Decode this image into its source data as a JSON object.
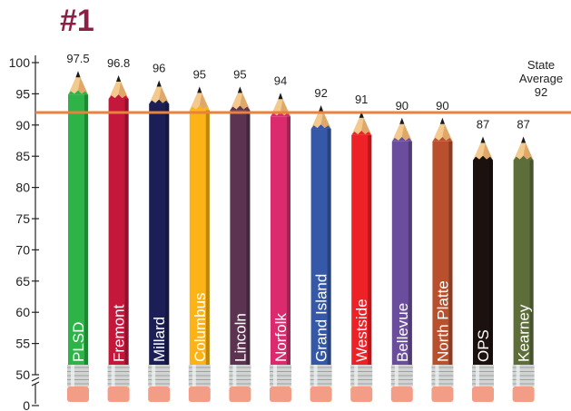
{
  "badge": "#1",
  "average_note": {
    "line1": "State",
    "line2": "Average",
    "value": "92"
  },
  "chart_data": {
    "type": "bar",
    "style": "pencils",
    "title": "",
    "xlabel": "",
    "ylabel": "",
    "ylim": [
      0,
      100
    ],
    "yticks": [
      0,
      50,
      55,
      60,
      65,
      70,
      75,
      80,
      85,
      90,
      95,
      100
    ],
    "axis_break": "between 0 and 50",
    "grid": false,
    "reference_line": {
      "value": 92,
      "color": "#e8823c"
    },
    "categories": [
      "PLSD",
      "Fremont",
      "Millard",
      "Columbus",
      "Lincoln",
      "Norfolk",
      "Grand Island",
      "Westside",
      "Bellevue",
      "North Platte",
      "OPS",
      "Kearney"
    ],
    "values": [
      97.5,
      96.8,
      96,
      95,
      95,
      94,
      92,
      91,
      90,
      90,
      87,
      87
    ],
    "value_labels": [
      "97.5",
      "96.8",
      "96",
      "95",
      "95",
      "94",
      "92",
      "91",
      "90",
      "90",
      "87",
      "87"
    ],
    "colors": [
      "#2db348",
      "#c3173c",
      "#1c1f55",
      "#fbb317",
      "#5c3451",
      "#dc2a6f",
      "#3658a8",
      "#ee2127",
      "#6b4d9e",
      "#b8502d",
      "#1b110e",
      "#5e6e3b"
    ]
  }
}
